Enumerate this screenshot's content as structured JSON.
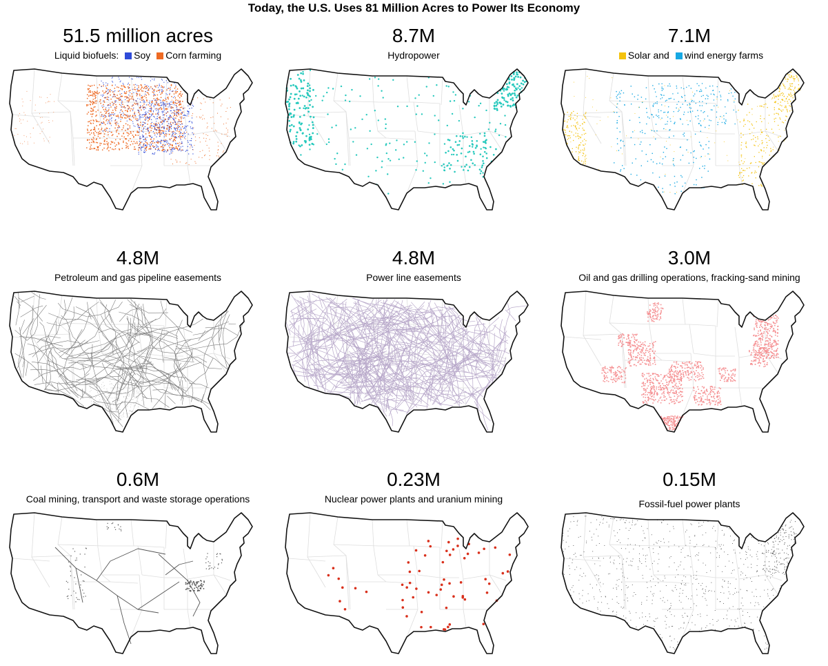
{
  "title": "Today, the U.S. Uses 81 Million Acres to Power Its Economy",
  "panels": [
    {
      "id": "biofuels",
      "value": "51.5 million acres",
      "subtitle_prefix": "Liquid biofuels:",
      "legend": [
        {
          "label": "Soy",
          "color": "#2f4bd8"
        },
        {
          "label": "Corn farming",
          "color": "#ee6a23"
        }
      ],
      "style": "biofuel",
      "icon": "biofuel-farmland-map"
    },
    {
      "id": "hydro",
      "value": "8.7M",
      "subtitle": "Hydropower",
      "color": "#27c9bd",
      "style": "points-hydro",
      "icon": "hydropower-map"
    },
    {
      "id": "solar-wind",
      "value": "7.1M",
      "legend": [
        {
          "label": "Solar and",
          "color": "#f4c20d"
        },
        {
          "label": "wind energy farms",
          "color": "#17a8e3"
        }
      ],
      "style": "solarwind",
      "icon": "solar-wind-map"
    },
    {
      "id": "pipelines",
      "value": "4.8M",
      "subtitle": "Petroleum and gas pipeline easements",
      "color": "#7a7a7a",
      "style": "lines-pipe",
      "icon": "pipeline-map"
    },
    {
      "id": "powerlines",
      "value": "4.8M",
      "subtitle": "Power line easements",
      "color": "#b7a7c9",
      "style": "lines-power",
      "icon": "power-line-map"
    },
    {
      "id": "drilling",
      "value": "3.0M",
      "subtitle": "Oil and gas drilling operations, fracking-sand mining",
      "color": "#f58f91",
      "style": "blobs-drill",
      "icon": "drilling-map"
    },
    {
      "id": "coal",
      "value": "0.6M",
      "subtitle": "Coal mining, transport and waste storage operations",
      "color": "#555555",
      "style": "coal",
      "icon": "coal-map"
    },
    {
      "id": "nuclear",
      "value": "0.23M",
      "subtitle": "Nuclear power plants and uranium mining",
      "color": "#d9301c",
      "style": "points-nuclear",
      "icon": "nuclear-map"
    },
    {
      "id": "fossil",
      "value": "0.15M",
      "subtitle": "Fossil-fuel power plants",
      "color": "#444444",
      "style": "points-fossil",
      "icon": "fossil-fuel-map"
    }
  ]
}
